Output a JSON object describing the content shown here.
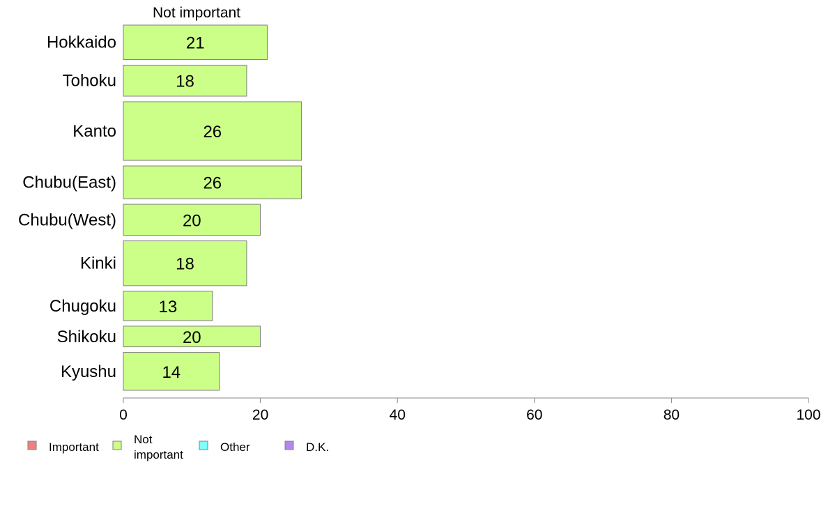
{
  "chart_data": {
    "type": "bar",
    "orientation": "horizontal",
    "stacked": true,
    "column_title": "Not important",
    "categories": [
      "Hokkaido",
      "Tohoku",
      "Kanto",
      "Chubu(East)",
      "Chubu(West)",
      "Kinki",
      "Chugoku",
      "Shikoku",
      "Kyushu"
    ],
    "series": [
      {
        "name": "Not important",
        "color": "#ccff88",
        "values": [
          21,
          18,
          26,
          26,
          20,
          18,
          13,
          20,
          14
        ]
      }
    ],
    "value_labels": [
      "21",
      "18",
      "26",
      "26",
      "20",
      "18",
      "13",
      "20",
      "14"
    ],
    "xlim": [
      0,
      100
    ],
    "x_ticks": [
      0,
      20,
      40,
      60,
      80,
      100
    ],
    "x_tick_labels": [
      "0",
      "20",
      "40",
      "60",
      "80",
      "100"
    ],
    "bar_weights": [
      1.0,
      0.9,
      1.7,
      0.95,
      0.9,
      1.3,
      0.85,
      0.6,
      1.1
    ],
    "grid": false,
    "legend": {
      "position": "bottom-left",
      "items": [
        {
          "label_lines": [
            "Important"
          ],
          "color": "#f08080"
        },
        {
          "label_lines": [
            "Not",
            "important"
          ],
          "color": "#ccff88"
        },
        {
          "label_lines": [
            "Other"
          ],
          "color": "#80ffff"
        },
        {
          "label_lines": [
            "D.K."
          ],
          "color": "#b088f0"
        }
      ]
    },
    "colors": {
      "bar_border": "#7f7f7f",
      "axis": "#888888",
      "text": "#000000"
    }
  }
}
